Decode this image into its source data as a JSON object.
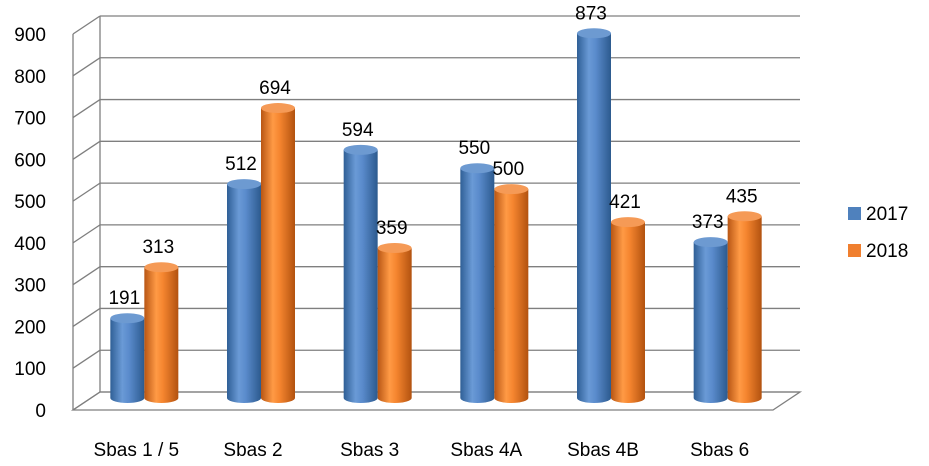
{
  "chart_data": {
    "type": "bar",
    "style": "3d-cylinder",
    "categories": [
      "Sbas 1 / 5",
      "Sbas 2",
      "Sbas 3",
      "Sbas 4A",
      "Sbas 4B",
      "Sbas 6"
    ],
    "series": [
      {
        "name": "2017",
        "values": [
          191,
          512,
          594,
          550,
          873,
          373
        ],
        "color": "#4f81bd"
      },
      {
        "name": "2018",
        "values": [
          313,
          694,
          359,
          500,
          421,
          435
        ],
        "color": "#f07f2f"
      }
    ],
    "yticks": [
      0,
      100,
      200,
      300,
      400,
      500,
      600,
      700,
      800,
      900
    ],
    "ylim": [
      0,
      900
    ],
    "grid": true,
    "legend_position": "right",
    "data_labels": true
  }
}
